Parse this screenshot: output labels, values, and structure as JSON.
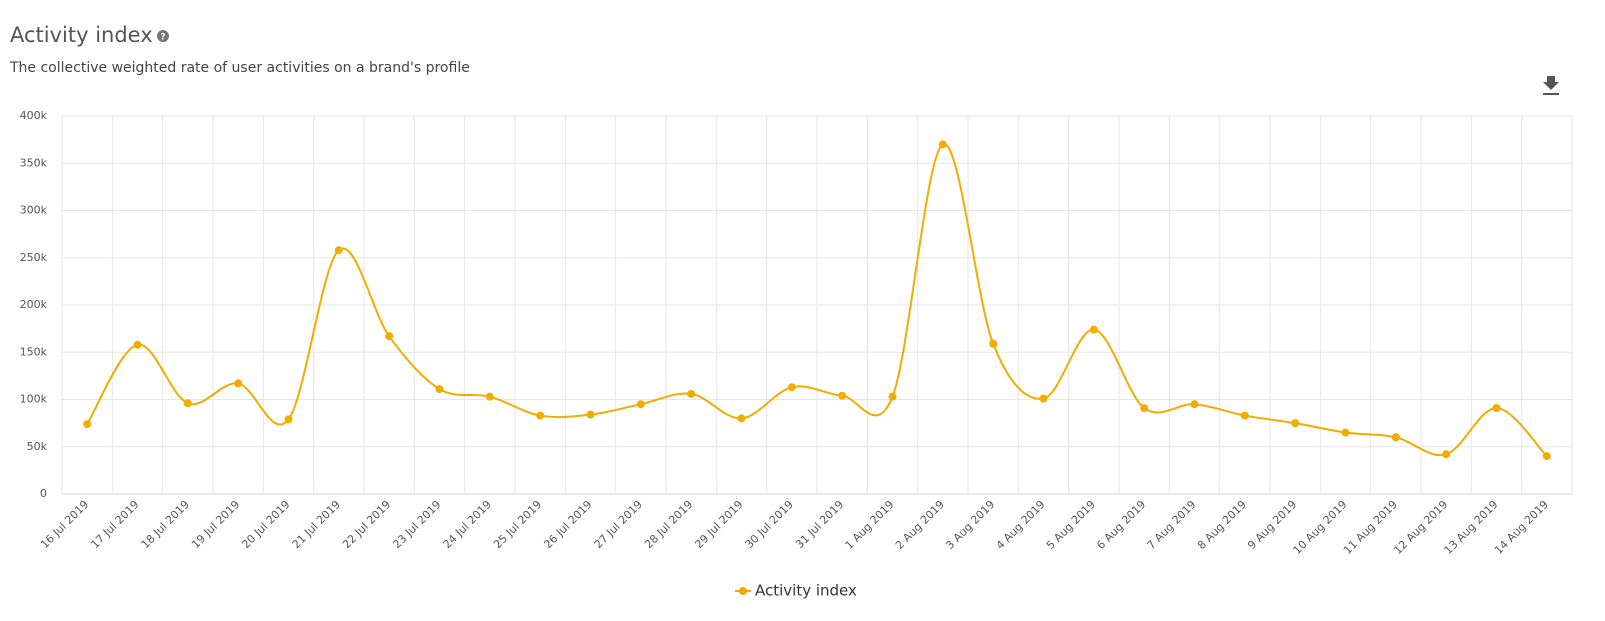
{
  "chart_data": {
    "type": "line",
    "title": "Activity index",
    "subtitle": "The collective weighted rate of user activities on a brand's profile",
    "categories": [
      "16 Jul 2019",
      "17 Jul 2019",
      "18 Jul 2019",
      "19 Jul 2019",
      "20 Jul 2019",
      "21 Jul 2019",
      "22 Jul 2019",
      "23 Jul 2019",
      "24 Jul 2019",
      "25 Jul 2019",
      "26 Jul 2019",
      "27 Jul 2019",
      "28 Jul 2019",
      "29 Jul 2019",
      "30 Jul 2019",
      "31 Jul 2019",
      "1 Aug 2019",
      "2 Aug 2019",
      "3 Aug 2019",
      "4 Aug 2019",
      "5 Aug 2019",
      "6 Aug 2019",
      "7 Aug 2019",
      "8 Aug 2019",
      "9 Aug 2019",
      "10 Aug 2019",
      "11 Aug 2019",
      "12 Aug 2019",
      "13 Aug 2019",
      "14 Aug 2019"
    ],
    "series": [
      {
        "name": "Activity index",
        "color": "#f0ad00",
        "values": [
          74000,
          158000,
          96000,
          117000,
          79000,
          258000,
          167000,
          111000,
          103000,
          83000,
          84000,
          95000,
          106000,
          80000,
          113000,
          104000,
          103000,
          370000,
          159000,
          101000,
          174000,
          91000,
          95000,
          83000,
          75000,
          65000,
          60000,
          42000,
          91000,
          40000
        ]
      }
    ],
    "ylim": [
      0,
      400000
    ],
    "yticks": [
      0,
      {
        "value": 50000,
        "label": "50k"
      },
      {
        "value": 100000,
        "label": "100k"
      },
      {
        "value": 150000,
        "label": "150k"
      },
      {
        "value": 200000,
        "label": "200k"
      },
      {
        "value": 250000,
        "label": "250k"
      },
      {
        "value": 300000,
        "label": "300k"
      },
      {
        "value": 350000,
        "label": "350k"
      },
      {
        "value": 400000,
        "label": "400k"
      }
    ],
    "grid": true,
    "legend": "bottom"
  }
}
